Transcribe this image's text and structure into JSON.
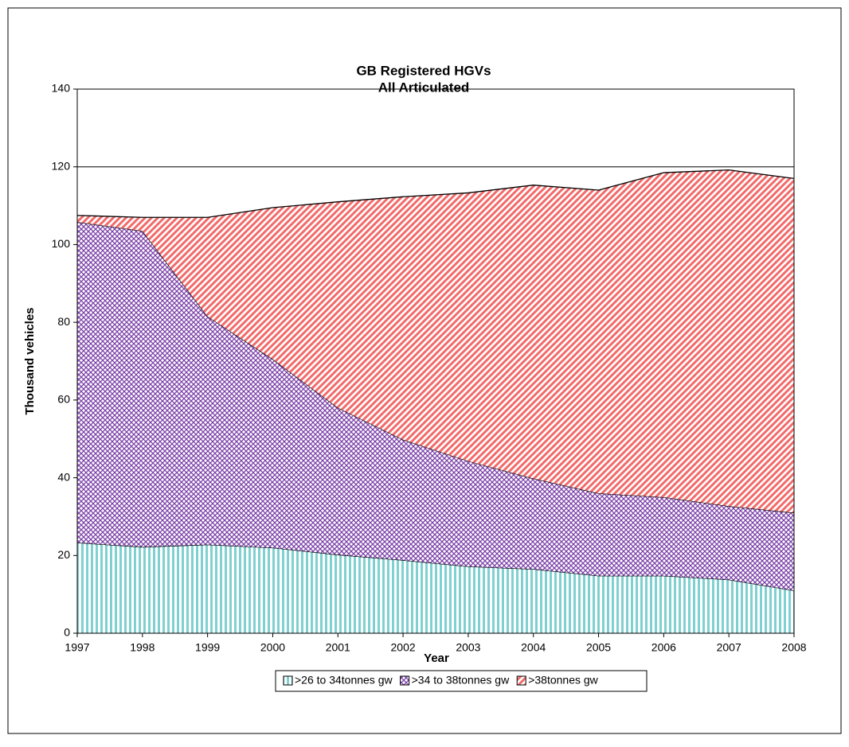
{
  "chart_data": {
    "type": "stacked_area",
    "title": "GB Registered HGVs",
    "subtitle": "All Articulated",
    "x_label": "Year",
    "y_label": "Thousand vehicles",
    "x": [
      1997,
      1998,
      1999,
      2000,
      2001,
      2002,
      2003,
      2004,
      2005,
      2006,
      2007,
      2008
    ],
    "xlim": [
      1997,
      2008
    ],
    "xticks": [
      1997,
      1998,
      1999,
      2000,
      2001,
      2002,
      2003,
      2004,
      2005,
      2006,
      2007,
      2008
    ],
    "ylim": [
      0,
      140
    ],
    "yticks": [
      0,
      20,
      40,
      60,
      80,
      100,
      120,
      140
    ],
    "grid": true,
    "legend": "bottom",
    "series": [
      {
        "name": ">26 to 34tonnes gw",
        "color": "#7fd0d0",
        "pattern": "vertical",
        "values": [
          23.3,
          22.2,
          22.8,
          22,
          20.2,
          18.8,
          17.2,
          16.5,
          14.8,
          14.8,
          13.8,
          11
        ]
      },
      {
        "name": ">34 to 38tonnes gw",
        "color": "#7a3fa8",
        "pattern": "crosshatch",
        "values": [
          82.5,
          81.3,
          58.7,
          48.5,
          37.8,
          31,
          27.1,
          23.3,
          21.2,
          20.2,
          18.9,
          20
        ]
      },
      {
        "name": ">38tonnes gw",
        "color": "#f26b6b",
        "pattern": "diagonal",
        "values": [
          1.7,
          3.5,
          25.5,
          39,
          53,
          62.5,
          69,
          75.5,
          78,
          83.5,
          86.5,
          86
        ]
      }
    ]
  }
}
